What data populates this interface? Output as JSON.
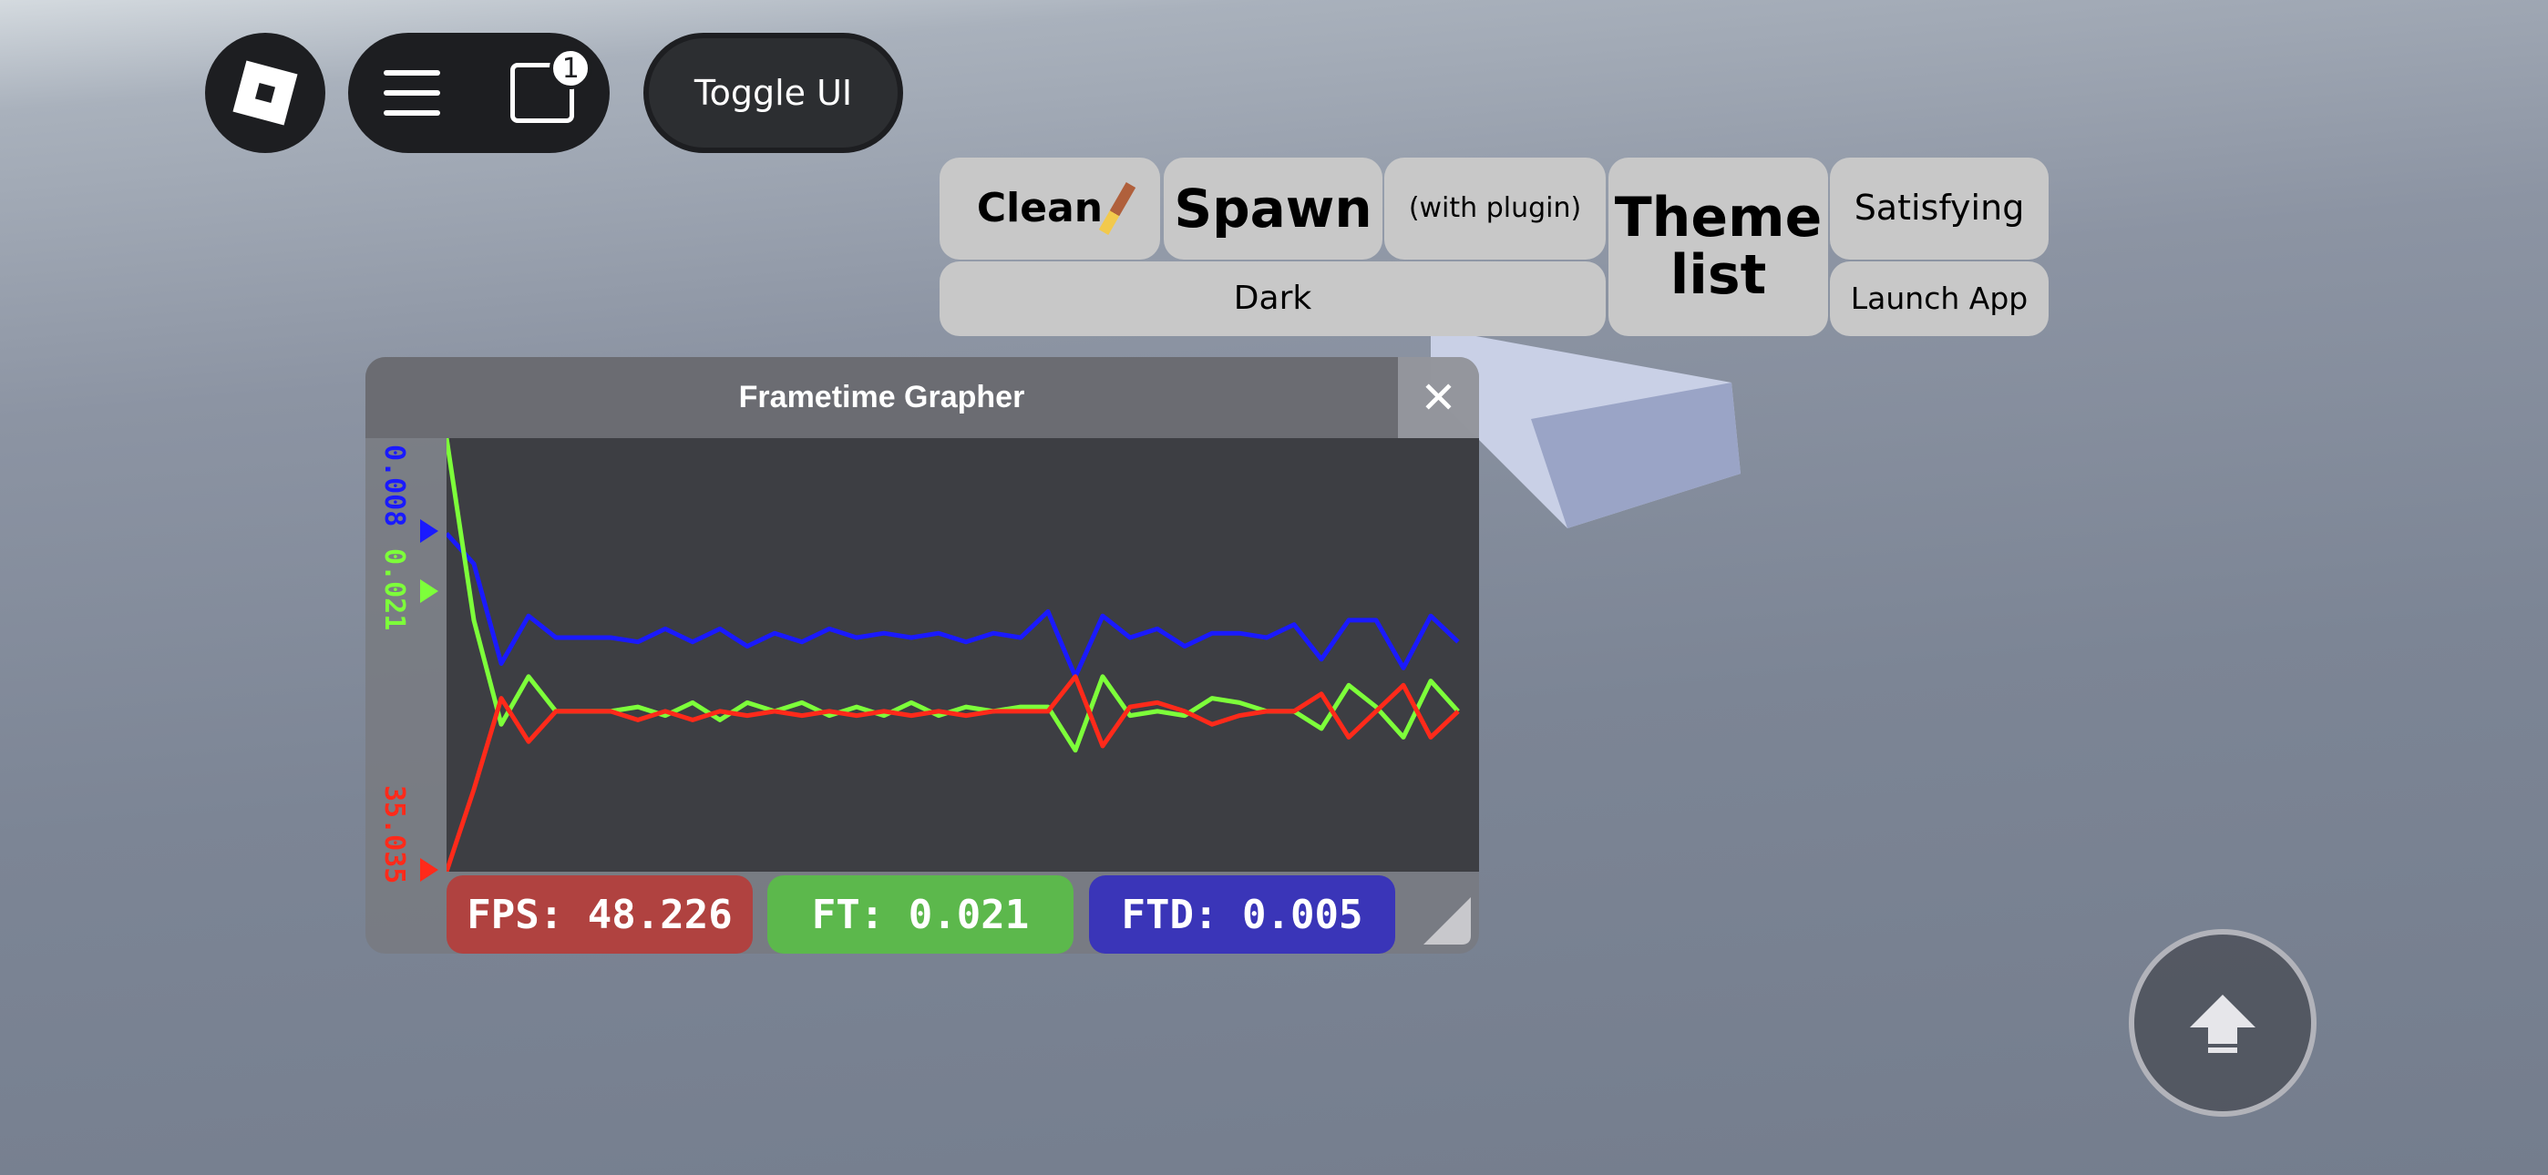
{
  "topbar": {
    "notification_count": "1",
    "toggle_ui_label": "Toggle UI"
  },
  "buttons": {
    "clean": "Clean",
    "spawn": "Spawn",
    "with_plugin": "(with plugin)",
    "theme_list": "Theme list",
    "satisfying": "Satisfying",
    "dark": "Dark",
    "launch_app": "Launch App"
  },
  "grapher": {
    "title": "Frametime Grapher",
    "close": "✕",
    "fps_label": "FPS: 48.226",
    "ft_label": "FT: 0.021",
    "ftd_label": "FTD: 0.005"
  },
  "chart_data": {
    "type": "line",
    "ylim": [
      0,
      100
    ],
    "axis_labels": {
      "blue": "0.008",
      "green": "0.021",
      "red": "35.035"
    },
    "series": [
      {
        "color": "#1a1aff",
        "values": [
          78,
          71,
          48,
          59,
          54,
          54,
          54,
          53,
          56,
          53,
          56,
          52,
          55,
          53,
          56,
          54,
          55,
          54,
          55,
          53,
          55,
          54,
          60,
          45,
          59,
          54,
          56,
          52,
          55,
          55,
          54,
          57,
          49,
          58,
          58,
          47,
          59,
          53
        ]
      },
      {
        "color": "#7dff3a",
        "values": [
          100,
          58,
          34,
          45,
          37,
          37,
          37,
          38,
          36,
          39,
          35,
          39,
          37,
          39,
          36,
          38,
          36,
          39,
          36,
          38,
          37,
          38,
          38,
          28,
          45,
          36,
          37,
          36,
          40,
          39,
          37,
          37,
          33,
          43,
          38,
          31,
          44,
          37
        ]
      },
      {
        "color": "#ff2a1a",
        "values": [
          0,
          19,
          40,
          30,
          37,
          37,
          37,
          35,
          37,
          35,
          37,
          36,
          37,
          36,
          37,
          36,
          37,
          36,
          37,
          36,
          37,
          37,
          37,
          45,
          29,
          38,
          39,
          37,
          34,
          36,
          37,
          37,
          41,
          31,
          37,
          43,
          31,
          37
        ]
      }
    ]
  },
  "colors": {
    "fps": "#b04240",
    "ft": "#5cb84c",
    "ftd": "#3a35b8",
    "button_bg": "#c8c8c8"
  }
}
